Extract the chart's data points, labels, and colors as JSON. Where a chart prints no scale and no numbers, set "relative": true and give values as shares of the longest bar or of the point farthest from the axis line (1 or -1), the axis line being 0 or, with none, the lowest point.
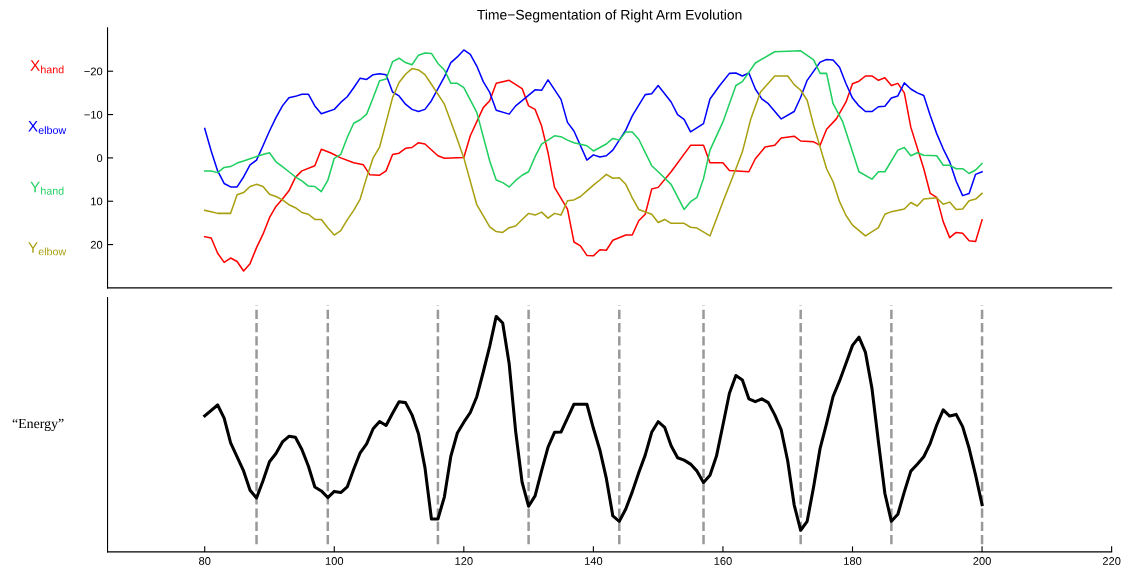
{
  "chart_data": [
    {
      "type": "line",
      "title": "Time−Segmentation of Right Arm Evolution",
      "xlim": [
        65,
        220
      ],
      "ylim": [
        30,
        -30
      ],
      "yticks": [
        {
          "value": -20,
          "label": "−20"
        },
        {
          "value": -10,
          "label": "−10"
        },
        0,
        10,
        20
      ],
      "tick_labels": "y",
      "series": [
        {
          "name": "X$_{hand}$",
          "color": "#ff0000",
          "x": [
            80,
            81,
            82,
            83,
            84,
            85,
            86,
            87,
            88,
            89,
            90,
            91,
            92,
            93,
            94,
            95,
            97,
            98,
            99.4,
            101,
            103,
            104.5,
            105.5,
            107,
            108,
            109,
            110,
            111,
            112,
            113,
            114,
            116,
            117,
            120,
            121,
            123,
            124,
            125,
            127,
            129,
            130,
            131,
            132,
            133,
            134,
            136,
            137,
            138,
            139,
            140,
            141,
            142,
            143,
            145,
            146,
            147,
            148,
            149,
            150,
            152,
            155,
            157,
            158,
            160,
            161,
            164,
            165,
            166.5,
            168,
            169,
            171,
            172,
            174,
            175,
            176,
            177.5,
            179,
            180,
            181,
            182,
            183,
            184,
            185,
            186,
            187,
            188,
            189,
            191,
            192,
            193,
            194,
            195,
            196,
            197,
            198,
            199,
            200
          ],
          "values": [
            18.2,
            18.5,
            22,
            24.1,
            23.1,
            23.9,
            26.1,
            24.4,
            20.7,
            17.6,
            13.8,
            11.2,
            9.5,
            7.6,
            4.5,
            3,
            1.8,
            -2,
            -1.2,
            0,
            1.1,
            1.6,
            3.9,
            4,
            3,
            -0.8,
            -1.1,
            -2.2,
            -2.4,
            -3.5,
            -3.2,
            -0.5,
            0.1,
            -0.1,
            -5.1,
            -11.6,
            -13.2,
            -17.2,
            -17.9,
            -16,
            -12,
            -11.2,
            -7.4,
            -1.2,
            6.8,
            11.8,
            19.4,
            20.3,
            22.5,
            22.6,
            21.2,
            21.3,
            19,
            17.8,
            17.8,
            14.5,
            13,
            7.2,
            6.8,
            3.2,
            -2.9,
            -2.9,
            1.1,
            1.1,
            2.9,
            3.2,
            0.2,
            -2.5,
            -2.9,
            -4.6,
            -5,
            -3.9,
            -3.7,
            -2.9,
            -6.6,
            -9,
            -12.9,
            -17.1,
            -17.7,
            -18.9,
            -18.9,
            -17.9,
            -18.5,
            -16.7,
            -17.2,
            -15,
            -7.1,
            2.5,
            8.2,
            9.1,
            14.7,
            18.4,
            17.2,
            17.4,
            19.1,
            19.3,
            14.3
          ]
        },
        {
          "name": "X$_{elbow}$",
          "color": "#0000ff",
          "x": [
            80,
            81,
            82,
            83,
            84,
            85,
            86,
            87,
            88,
            89,
            90,
            91,
            92,
            93,
            94,
            95,
            96,
            97,
            98,
            99,
            100,
            101,
            102,
            103,
            104,
            105,
            106,
            107,
            108,
            109,
            110,
            111,
            112,
            113,
            114,
            115,
            117,
            118,
            119,
            120,
            121,
            122,
            123,
            124,
            125,
            127,
            128,
            129,
            131,
            132,
            133,
            135,
            136,
            137,
            139,
            140,
            141,
            142,
            143,
            145,
            146,
            148,
            149,
            150,
            152,
            153,
            154,
            155,
            157,
            158,
            159.5,
            161,
            162,
            163,
            164,
            165,
            166,
            167,
            169,
            171,
            172,
            173,
            175,
            176,
            177,
            178,
            179,
            180,
            181,
            182,
            183,
            184,
            185,
            186,
            187,
            188,
            189,
            190,
            191,
            192,
            193,
            194,
            195,
            196,
            197,
            198,
            199,
            200
          ],
          "values": [
            -6.8,
            -1.6,
            3,
            5.9,
            6.7,
            6.7,
            4.4,
            1.6,
            0.5,
            -2.8,
            -6.2,
            -9.3,
            -12,
            -13.9,
            -14.2,
            -14.7,
            -14.7,
            -12,
            -10.2,
            -10.7,
            -11.2,
            -12.8,
            -14.1,
            -16.2,
            -18.4,
            -18.1,
            -19.2,
            -19.4,
            -19.2,
            -15.2,
            -14.3,
            -12.4,
            -11.2,
            -10.7,
            -11.2,
            -13.2,
            -18.7,
            -22,
            -23.3,
            -24.9,
            -23.9,
            -21.2,
            -17.6,
            -15.1,
            -11,
            -10.1,
            -12,
            -13.2,
            -15.7,
            -15.6,
            -18,
            -13.5,
            -8.2,
            -6.2,
            0.5,
            -0.7,
            -0.2,
            -0.5,
            -1.8,
            -6.4,
            -9.7,
            -14.6,
            -14.8,
            -16.7,
            -12.9,
            -10,
            -8.9,
            -6,
            -7.9,
            -13.6,
            -16.7,
            -19.5,
            -19.6,
            -18.9,
            -19.6,
            -15.9,
            -13.6,
            -12.5,
            -9,
            -10.7,
            -14,
            -17.9,
            -22.1,
            -22.7,
            -22.6,
            -20.9,
            -17.1,
            -13.8,
            -12,
            -10.7,
            -10.7,
            -11.8,
            -11.9,
            -13.8,
            -14.3,
            -17.3,
            -15.9,
            -15,
            -14.4,
            -9.8,
            -5.6,
            -2.1,
            0.9,
            5.4,
            8.7,
            8.2,
            3.8,
            3.2
          ]
        },
        {
          "name": "Y$_{hand}$",
          "color": "#1fcf5f",
          "x": [
            80,
            81,
            82,
            83,
            84,
            85,
            86,
            87,
            88,
            89,
            90,
            91,
            92,
            93,
            94,
            95,
            96,
            97,
            98,
            99,
            100,
            101,
            102,
            103,
            104,
            105,
            106,
            107,
            108,
            109,
            110,
            111,
            112,
            113,
            114,
            115,
            116,
            117,
            118,
            119,
            120,
            122,
            124,
            125,
            126,
            127,
            128,
            129,
            130,
            131,
            132,
            134,
            135,
            136,
            137,
            139,
            140,
            141,
            142,
            143,
            144,
            145,
            146,
            147,
            149,
            150,
            152,
            154,
            155,
            156,
            157,
            158,
            160,
            162,
            163,
            165,
            168,
            172,
            174,
            175,
            176,
            177,
            178.5,
            181,
            183,
            184,
            185,
            187,
            188,
            189,
            190,
            191,
            193,
            194,
            195,
            196,
            197,
            198,
            199,
            200
          ],
          "values": [
            3,
            3,
            3.4,
            2.2,
            2,
            1.2,
            0.7,
            0.2,
            -0.3,
            -0.8,
            -1.2,
            0.9,
            2,
            3.2,
            4.4,
            5.3,
            6.5,
            6.6,
            7.8,
            5.2,
            0.1,
            -0.8,
            -4.7,
            -8,
            -8.8,
            -10.1,
            -13.9,
            -17.8,
            -18.2,
            -22.2,
            -23,
            -22,
            -21.5,
            -23.7,
            -24.2,
            -24.1,
            -21.8,
            -20.3,
            -17.2,
            -17.2,
            -16.2,
            -10.5,
            0.7,
            5.1,
            5.7,
            6.7,
            5.2,
            4,
            3.2,
            -0.3,
            -3.2,
            -5.1,
            -4.9,
            -4.1,
            -3.5,
            -2.8,
            -1.6,
            -2.4,
            -3.2,
            -4.5,
            -4.1,
            -6,
            -6,
            -4.3,
            1.8,
            3.2,
            6.1,
            11.9,
            10.1,
            9.1,
            4.8,
            -1.8,
            -8.3,
            -16.7,
            -17.6,
            -21.9,
            -24.5,
            -24.7,
            -22.6,
            -19.5,
            -19.5,
            -12.5,
            -8.3,
            3.2,
            4.9,
            3.2,
            3.2,
            -1.8,
            -2.4,
            -0.5,
            -1.2,
            -0.6,
            -0.5,
            1.7,
            1.7,
            2.5,
            2.5,
            3.6,
            2.8,
            1.3
          ]
        },
        {
          "name": "Y$_{elbow}$",
          "color": "#a8a010",
          "x": [
            80,
            81,
            82,
            84,
            85,
            86,
            87,
            88,
            89,
            90,
            91,
            92,
            93,
            94,
            95,
            96,
            97,
            98,
            99,
            100,
            101,
            102,
            103,
            104,
            105,
            106,
            107,
            108,
            109,
            110,
            111,
            112,
            113,
            114,
            115,
            117,
            118.7,
            120,
            122,
            124,
            125,
            126,
            127,
            128,
            129,
            130,
            131,
            132,
            133,
            134,
            135,
            136,
            137,
            138,
            139,
            140,
            141,
            142,
            143,
            144,
            145,
            146,
            147,
            149,
            150,
            151,
            152,
            154,
            155,
            156,
            158,
            160,
            162,
            163,
            164.3,
            165.8,
            168,
            170,
            171,
            172,
            173,
            174,
            176,
            177,
            178,
            179,
            180,
            182,
            184,
            185,
            186,
            188,
            189,
            190,
            191,
            193,
            194,
            195,
            196,
            197,
            198,
            199,
            200
          ],
          "values": [
            12.1,
            12.4,
            12.8,
            12.8,
            8.5,
            8,
            6.6,
            6.1,
            6.6,
            8.4,
            8.9,
            9.7,
            10.8,
            11.5,
            12.6,
            13,
            14.2,
            14.2,
            16.1,
            17.8,
            16.8,
            14.3,
            12.1,
            9.5,
            4.5,
            0,
            -2.5,
            -8.2,
            -13.9,
            -17.4,
            -19.3,
            -20.6,
            -20.3,
            -19.2,
            -17,
            -12.4,
            -5.5,
            0,
            10.8,
            15.9,
            17,
            17.2,
            16.1,
            15.7,
            14.2,
            12.8,
            13.2,
            12.5,
            13.9,
            12.8,
            13.2,
            9.9,
            9.7,
            8.9,
            7.6,
            6.3,
            5.1,
            3.8,
            4.7,
            4.6,
            6.1,
            9.2,
            11.9,
            13,
            14.9,
            14.2,
            15.1,
            15.1,
            16,
            16.2,
            18,
            10.1,
            2.5,
            -1.4,
            -9,
            -15.2,
            -18.9,
            -18.9,
            -16.9,
            -15.6,
            -13.3,
            -7.5,
            2.5,
            5.5,
            10.1,
            13.3,
            15.5,
            18,
            16.1,
            13,
            12.4,
            11.8,
            10.3,
            11.1,
            9.5,
            9.2,
            10.7,
            10.2,
            11.9,
            11.8,
            9.9,
            9.5,
            8.2
          ]
        }
      ]
    },
    {
      "type": "line",
      "ylabel": "“Energy”",
      "relative": true,
      "xlim": [
        65,
        220
      ],
      "xticks": [
        80,
        100,
        120,
        140,
        160,
        180,
        200,
        220
      ],
      "tick_labels": "x",
      "ref_lines": [
        {
          "axis": "x",
          "value": 88,
          "color": "#999999",
          "line_style": "dashed"
        },
        {
          "axis": "x",
          "value": 99,
          "color": "#999999",
          "line_style": "dashed"
        },
        {
          "axis": "x",
          "value": 116,
          "color": "#999999",
          "line_style": "dashed"
        },
        {
          "axis": "x",
          "value": 130,
          "color": "#999999",
          "line_style": "dashed"
        },
        {
          "axis": "x",
          "value": 144,
          "color": "#999999",
          "line_style": "dashed"
        },
        {
          "axis": "x",
          "value": 157,
          "color": "#999999",
          "line_style": "dashed"
        },
        {
          "axis": "x",
          "value": 172,
          "color": "#999999",
          "line_style": "dashed"
        },
        {
          "axis": "x",
          "value": 186,
          "color": "#999999",
          "line_style": "dashed"
        },
        {
          "axis": "x",
          "value": 200,
          "color": "#999999",
          "line_style": "dashed"
        }
      ],
      "series": [
        {
          "color": "#000000",
          "x": [
            80,
            82,
            83,
            84,
            86,
            87,
            88,
            89,
            90,
            91,
            92,
            93,
            94,
            95,
            96,
            97,
            98,
            99,
            100,
            101,
            102,
            103,
            104,
            105,
            106,
            107,
            108,
            109,
            110,
            111,
            112,
            113,
            114,
            115,
            116,
            117,
            118,
            119,
            120,
            121,
            122,
            123,
            124,
            125,
            126,
            127,
            128,
            129,
            130,
            131,
            132,
            133,
            134,
            135,
            136,
            137,
            139,
            140,
            141,
            142,
            143,
            144,
            145,
            146,
            147,
            148,
            149,
            150,
            151,
            152,
            153,
            154,
            155,
            156,
            157,
            158,
            159,
            160,
            161,
            162,
            163,
            164,
            165,
            166,
            167,
            168,
            169,
            170,
            171,
            172,
            173,
            174,
            175,
            176,
            177,
            178,
            179,
            180,
            181,
            182,
            183,
            184,
            185,
            186,
            187,
            188,
            189,
            190,
            191,
            192,
            193,
            194,
            195,
            196,
            197,
            198,
            199,
            200
          ],
          "values": [
            0.578,
            0.624,
            0.568,
            0.463,
            0.344,
            0.262,
            0.229,
            0.302,
            0.383,
            0.418,
            0.467,
            0.491,
            0.487,
            0.435,
            0.365,
            0.276,
            0.259,
            0.231,
            0.257,
            0.252,
            0.276,
            0.351,
            0.421,
            0.459,
            0.523,
            0.554,
            0.537,
            0.589,
            0.638,
            0.634,
            0.582,
            0.502,
            0.358,
            0.14,
            0.14,
            0.234,
            0.407,
            0.505,
            0.551,
            0.592,
            0.659,
            0.764,
            0.874,
            1.0,
            0.972,
            0.799,
            0.512,
            0.295,
            0.194,
            0.238,
            0.344,
            0.445,
            0.508,
            0.509,
            0.568,
            0.627,
            0.627,
            0.525,
            0.433,
            0.312,
            0.153,
            0.13,
            0.182,
            0.255,
            0.336,
            0.411,
            0.508,
            0.553,
            0.529,
            0.451,
            0.4,
            0.39,
            0.373,
            0.343,
            0.295,
            0.326,
            0.407,
            0.539,
            0.674,
            0.749,
            0.73,
            0.65,
            0.638,
            0.65,
            0.634,
            0.582,
            0.518,
            0.386,
            0.199,
            0.092,
            0.13,
            0.277,
            0.44,
            0.546,
            0.66,
            0.726,
            0.801,
            0.877,
            0.912,
            0.847,
            0.695,
            0.468,
            0.248,
            0.13,
            0.16,
            0.255,
            0.343,
            0.372,
            0.404,
            0.461,
            0.539,
            0.603,
            0.577,
            0.584,
            0.532,
            0.44,
            0.326,
            0.201
          ]
        }
      ]
    }
  ]
}
